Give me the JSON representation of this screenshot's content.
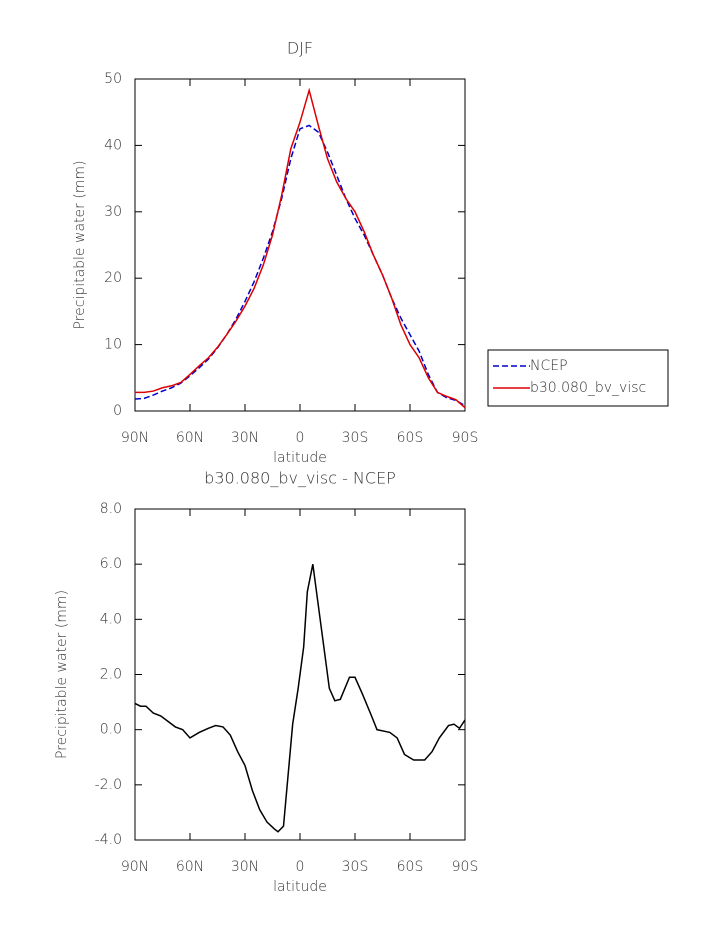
{
  "chart_data": [
    {
      "type": "line",
      "title": "DJF",
      "xlabel": "latitude",
      "ylabel": "Precipitable water (mm)",
      "x": [
        90,
        85,
        80,
        75,
        70,
        65,
        60,
        55,
        50,
        45,
        40,
        35,
        30,
        25,
        20,
        15,
        10,
        5,
        0,
        -5,
        -10,
        -15,
        -20,
        -25,
        -30,
        -35,
        -40,
        -45,
        -50,
        -55,
        -60,
        -65,
        -70,
        -75,
        -80,
        -85,
        -90
      ],
      "series": [
        {
          "name": "NCEP",
          "color": "#0000cc",
          "line_style": "dashed",
          "values": [
            1.8,
            1.9,
            2.4,
            3.0,
            3.5,
            4.2,
            5.3,
            6.5,
            7.8,
            9.5,
            11.5,
            13.8,
            16.5,
            19.5,
            23,
            27,
            32,
            38,
            42.5,
            43,
            42,
            39,
            35.5,
            32,
            29,
            26.5,
            23.5,
            20.5,
            17,
            14,
            11.5,
            9,
            5.5,
            2.8,
            2.0,
            1.6,
            0.8
          ]
        },
        {
          "name": "b30.080_bv_visc",
          "color": "#dd0000",
          "line_style": "solid",
          "values": [
            2.8,
            2.8,
            3.0,
            3.5,
            3.8,
            4.3,
            5.5,
            6.8,
            8,
            9.6,
            11.5,
            13.5,
            15.8,
            18.5,
            22,
            26.5,
            32.5,
            39.5,
            43.5,
            48.3,
            43,
            38,
            34.5,
            32,
            30,
            27,
            23.5,
            20.5,
            17,
            13,
            10,
            8,
            5,
            2.8,
            2.2,
            1.7,
            0.5
          ]
        }
      ],
      "xlim": [
        90,
        -90
      ],
      "xticks": [
        {
          "value": 90,
          "label": "90N"
        },
        {
          "value": 60,
          "label": "60N"
        },
        {
          "value": 30,
          "label": "30N"
        },
        0,
        {
          "value": -30,
          "label": "30S"
        },
        {
          "value": -60,
          "label": "60S"
        },
        {
          "value": -90,
          "label": "90S"
        }
      ],
      "ylim": [
        0,
        50
      ],
      "yticks": [
        0,
        10,
        20,
        30,
        40,
        50
      ],
      "legend": "right"
    },
    {
      "type": "line",
      "title": "b30.080_bv_visc - NCEP",
      "xlabel": "latitude",
      "ylabel": "Precipitable water (mm)",
      "x": [
        90,
        87,
        84,
        80,
        76,
        72,
        68,
        64,
        60,
        55,
        50,
        46,
        42,
        38,
        34,
        30,
        26,
        22,
        18,
        14,
        12,
        9,
        4,
        1,
        -2,
        -4,
        -7,
        -10,
        -14,
        -16,
        -19,
        -22,
        -27,
        -30,
        -34,
        -39,
        -42,
        -49,
        -53,
        -57,
        -62,
        -68,
        -72,
        -76,
        -81,
        -84,
        -87,
        -90
      ],
      "color": "#000000",
      "values": [
        0.95,
        0.85,
        0.85,
        0.6,
        0.5,
        0.3,
        0.1,
        0.0,
        -0.3,
        -0.1,
        0.05,
        0.15,
        0.1,
        -0.2,
        -0.8,
        -1.3,
        -2.2,
        -2.9,
        -3.35,
        -3.6,
        -3.7,
        -3.5,
        0.2,
        1.5,
        3.0,
        5.0,
        6.0,
        4.5,
        2.5,
        1.5,
        1.05,
        1.1,
        1.9,
        1.9,
        1.3,
        0.5,
        0.0,
        -0.1,
        -0.3,
        -0.9,
        -1.1,
        -1.1,
        -0.8,
        -0.3,
        0.15,
        0.2,
        0.05,
        0.35
      ],
      "xlim": [
        90,
        -90
      ],
      "xticks": [
        {
          "value": 90,
          "label": "90N"
        },
        {
          "value": 60,
          "label": "60N"
        },
        {
          "value": 30,
          "label": "30N"
        },
        0,
        {
          "value": -30,
          "label": "30S"
        },
        {
          "value": -60,
          "label": "60S"
        },
        {
          "value": -90,
          "label": "90S"
        }
      ],
      "ylim": [
        -4,
        8
      ],
      "yticks": [
        {
          "value": -4,
          "label": "-4.0"
        },
        {
          "value": -2,
          "label": "-2.0"
        },
        {
          "value": 0,
          "label": "0.0"
        },
        {
          "value": 2,
          "label": "2.0"
        },
        {
          "value": 4,
          "label": "4.0"
        },
        {
          "value": 6,
          "label": "6.0"
        },
        {
          "value": 8,
          "label": "8.0"
        }
      ]
    }
  ]
}
